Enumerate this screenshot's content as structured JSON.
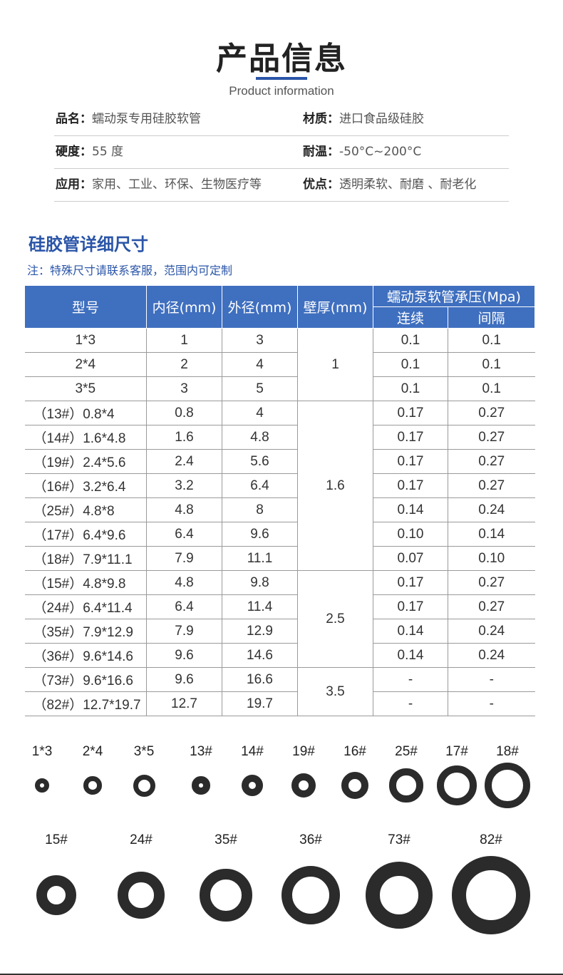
{
  "header": {
    "title": "产品信息",
    "subtitle": "Product information"
  },
  "info": [
    {
      "k1": "品名：",
      "v1": "蠕动泵专用硅胶软管",
      "k2": "材质：",
      "v2": "进口食品级硅胶"
    },
    {
      "k1": "硬度：",
      "v1": "55 度",
      "k2": "耐温：",
      "v2": "-50°C~200°C"
    },
    {
      "k1": "应用：",
      "v1": "家用、工业、环保、生物医疗等",
      "k2": "优点：",
      "v2": "透明柔软、耐磨 、耐老化"
    }
  ],
  "section": {
    "title": "硅胶管详细尺寸",
    "note": "注：特殊尺寸请联系客服，范围内可定制"
  },
  "table": {
    "headers": {
      "model": "型号",
      "inner": "内径(mm)",
      "outer": "外径(mm)",
      "wall": "壁厚(mm)",
      "pressure": "蠕动泵软管承压(Mpa)",
      "continuous": "连续",
      "interval": "间隔"
    },
    "rows": [
      {
        "model": "1*3",
        "inner": "1",
        "outer": "3",
        "wall": "1",
        "wall_span": 3,
        "cont": "0.1",
        "intv": "0.1"
      },
      {
        "model": "2*4",
        "inner": "2",
        "outer": "4",
        "cont": "0.1",
        "intv": "0.1"
      },
      {
        "model": "3*5",
        "inner": "3",
        "outer": "5",
        "cont": "0.1",
        "intv": "0.1"
      },
      {
        "model": "（13#）0.8*4",
        "inner": "0.8",
        "outer": "4",
        "wall": "1.6",
        "wall_span": 7,
        "cont": "0.17",
        "intv": "0.27"
      },
      {
        "model": "（14#）1.6*4.8",
        "inner": "1.6",
        "outer": "4.8",
        "cont": "0.17",
        "intv": "0.27"
      },
      {
        "model": "（19#）2.4*5.6",
        "inner": "2.4",
        "outer": "5.6",
        "cont": "0.17",
        "intv": "0.27"
      },
      {
        "model": "（16#）3.2*6.4",
        "inner": "3.2",
        "outer": "6.4",
        "cont": "0.17",
        "intv": "0.27"
      },
      {
        "model": "（25#）4.8*8",
        "inner": "4.8",
        "outer": "8",
        "cont": "0.14",
        "intv": "0.24"
      },
      {
        "model": "（17#）6.4*9.6",
        "inner": "6.4",
        "outer": "9.6",
        "cont": "0.10",
        "intv": "0.14"
      },
      {
        "model": "（18#）7.9*11.1",
        "inner": "7.9",
        "outer": "11.1",
        "cont": "0.07",
        "intv": "0.10"
      },
      {
        "model": "（15#）4.8*9.8",
        "inner": "4.8",
        "outer": "9.8",
        "wall": "2.5",
        "wall_span": 4,
        "cont": "0.17",
        "intv": "0.27"
      },
      {
        "model": "（24#）6.4*11.4",
        "inner": "6.4",
        "outer": "11.4",
        "cont": "0.17",
        "intv": "0.27"
      },
      {
        "model": "（35#）7.9*12.9",
        "inner": "7.9",
        "outer": "12.9",
        "cont": "0.14",
        "intv": "0.24"
      },
      {
        "model": "（36#）9.6*14.6",
        "inner": "9.6",
        "outer": "14.6",
        "cont": "0.14",
        "intv": "0.24"
      },
      {
        "model": "（73#）9.6*16.6",
        "inner": "9.6",
        "outer": "16.6",
        "wall": "3.5",
        "wall_span": 2,
        "cont": "-",
        "intv": "-"
      },
      {
        "model": "（82#）12.7*19.7",
        "inner": "12.7",
        "outer": "19.7",
        "cont": "-",
        "intv": "-"
      }
    ]
  },
  "rings": [
    {
      "label": "1*3",
      "inner": 1,
      "outer": 3
    },
    {
      "label": "2*4",
      "inner": 2,
      "outer": 4
    },
    {
      "label": "3*5",
      "inner": 3,
      "outer": 5
    },
    {
      "label": "13#",
      "inner": 0.8,
      "outer": 4
    },
    {
      "label": "14#",
      "inner": 1.6,
      "outer": 4.8
    },
    {
      "label": "19#",
      "inner": 2.4,
      "outer": 5.6
    },
    {
      "label": "16#",
      "inner": 3.2,
      "outer": 6.4
    },
    {
      "label": "25#",
      "inner": 4.8,
      "outer": 8
    },
    {
      "label": "17#",
      "inner": 6.4,
      "outer": 9.6
    },
    {
      "label": "18#",
      "inner": 7.9,
      "outer": 11.1
    },
    {
      "label": "15#",
      "inner": 4.8,
      "outer": 9.8
    },
    {
      "label": "24#",
      "inner": 6.4,
      "outer": 11.4
    },
    {
      "label": "35#",
      "inner": 7.9,
      "outer": 12.9
    },
    {
      "label": "36#",
      "inner": 9.6,
      "outer": 14.6
    },
    {
      "label": "73#",
      "inner": 9.6,
      "outer": 16.6
    },
    {
      "label": "82#",
      "inner": 12.7,
      "outer": 19.7
    }
  ]
}
